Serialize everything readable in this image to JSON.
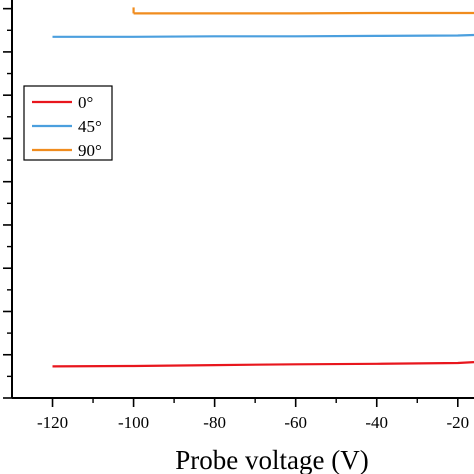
{
  "chart_data": {
    "type": "line",
    "xlabel": "Probe voltage (V)",
    "ylabel": "",
    "x_ticks": [
      -120,
      -100,
      -80,
      -60,
      -40,
      -20
    ],
    "x_tick_labels": [
      "-120",
      "-100",
      "-80",
      "-60",
      "-40",
      "-20"
    ],
    "xlim": [
      -130,
      -16
    ],
    "ylim": [
      0,
      9.2
    ],
    "y_ticks": [
      0,
      1,
      2,
      3,
      4,
      5,
      6,
      7,
      8,
      9
    ],
    "y_tick_labels_visible": false,
    "grid": false,
    "legend_position": "upper-left",
    "series": [
      {
        "name": "0°",
        "color": "#e8161d",
        "x": [
          -120,
          -100,
          -80,
          -60,
          -40,
          -20,
          -16
        ],
        "y": [
          0.73,
          0.74,
          0.76,
          0.78,
          0.79,
          0.81,
          0.83
        ]
      },
      {
        "name": "45°",
        "color": "#4b9fde",
        "x": [
          -120,
          -100,
          -80,
          -60,
          -40,
          -20,
          -16
        ],
        "y": [
          8.35,
          8.35,
          8.36,
          8.36,
          8.37,
          8.38,
          8.39
        ]
      },
      {
        "name": "90°",
        "color": "#f08c1e",
        "x": [
          -100,
          -80,
          -60,
          -40,
          -20,
          -16
        ],
        "y": [
          8.89,
          8.89,
          8.89,
          8.9,
          8.9,
          8.9
        ]
      }
    ]
  }
}
